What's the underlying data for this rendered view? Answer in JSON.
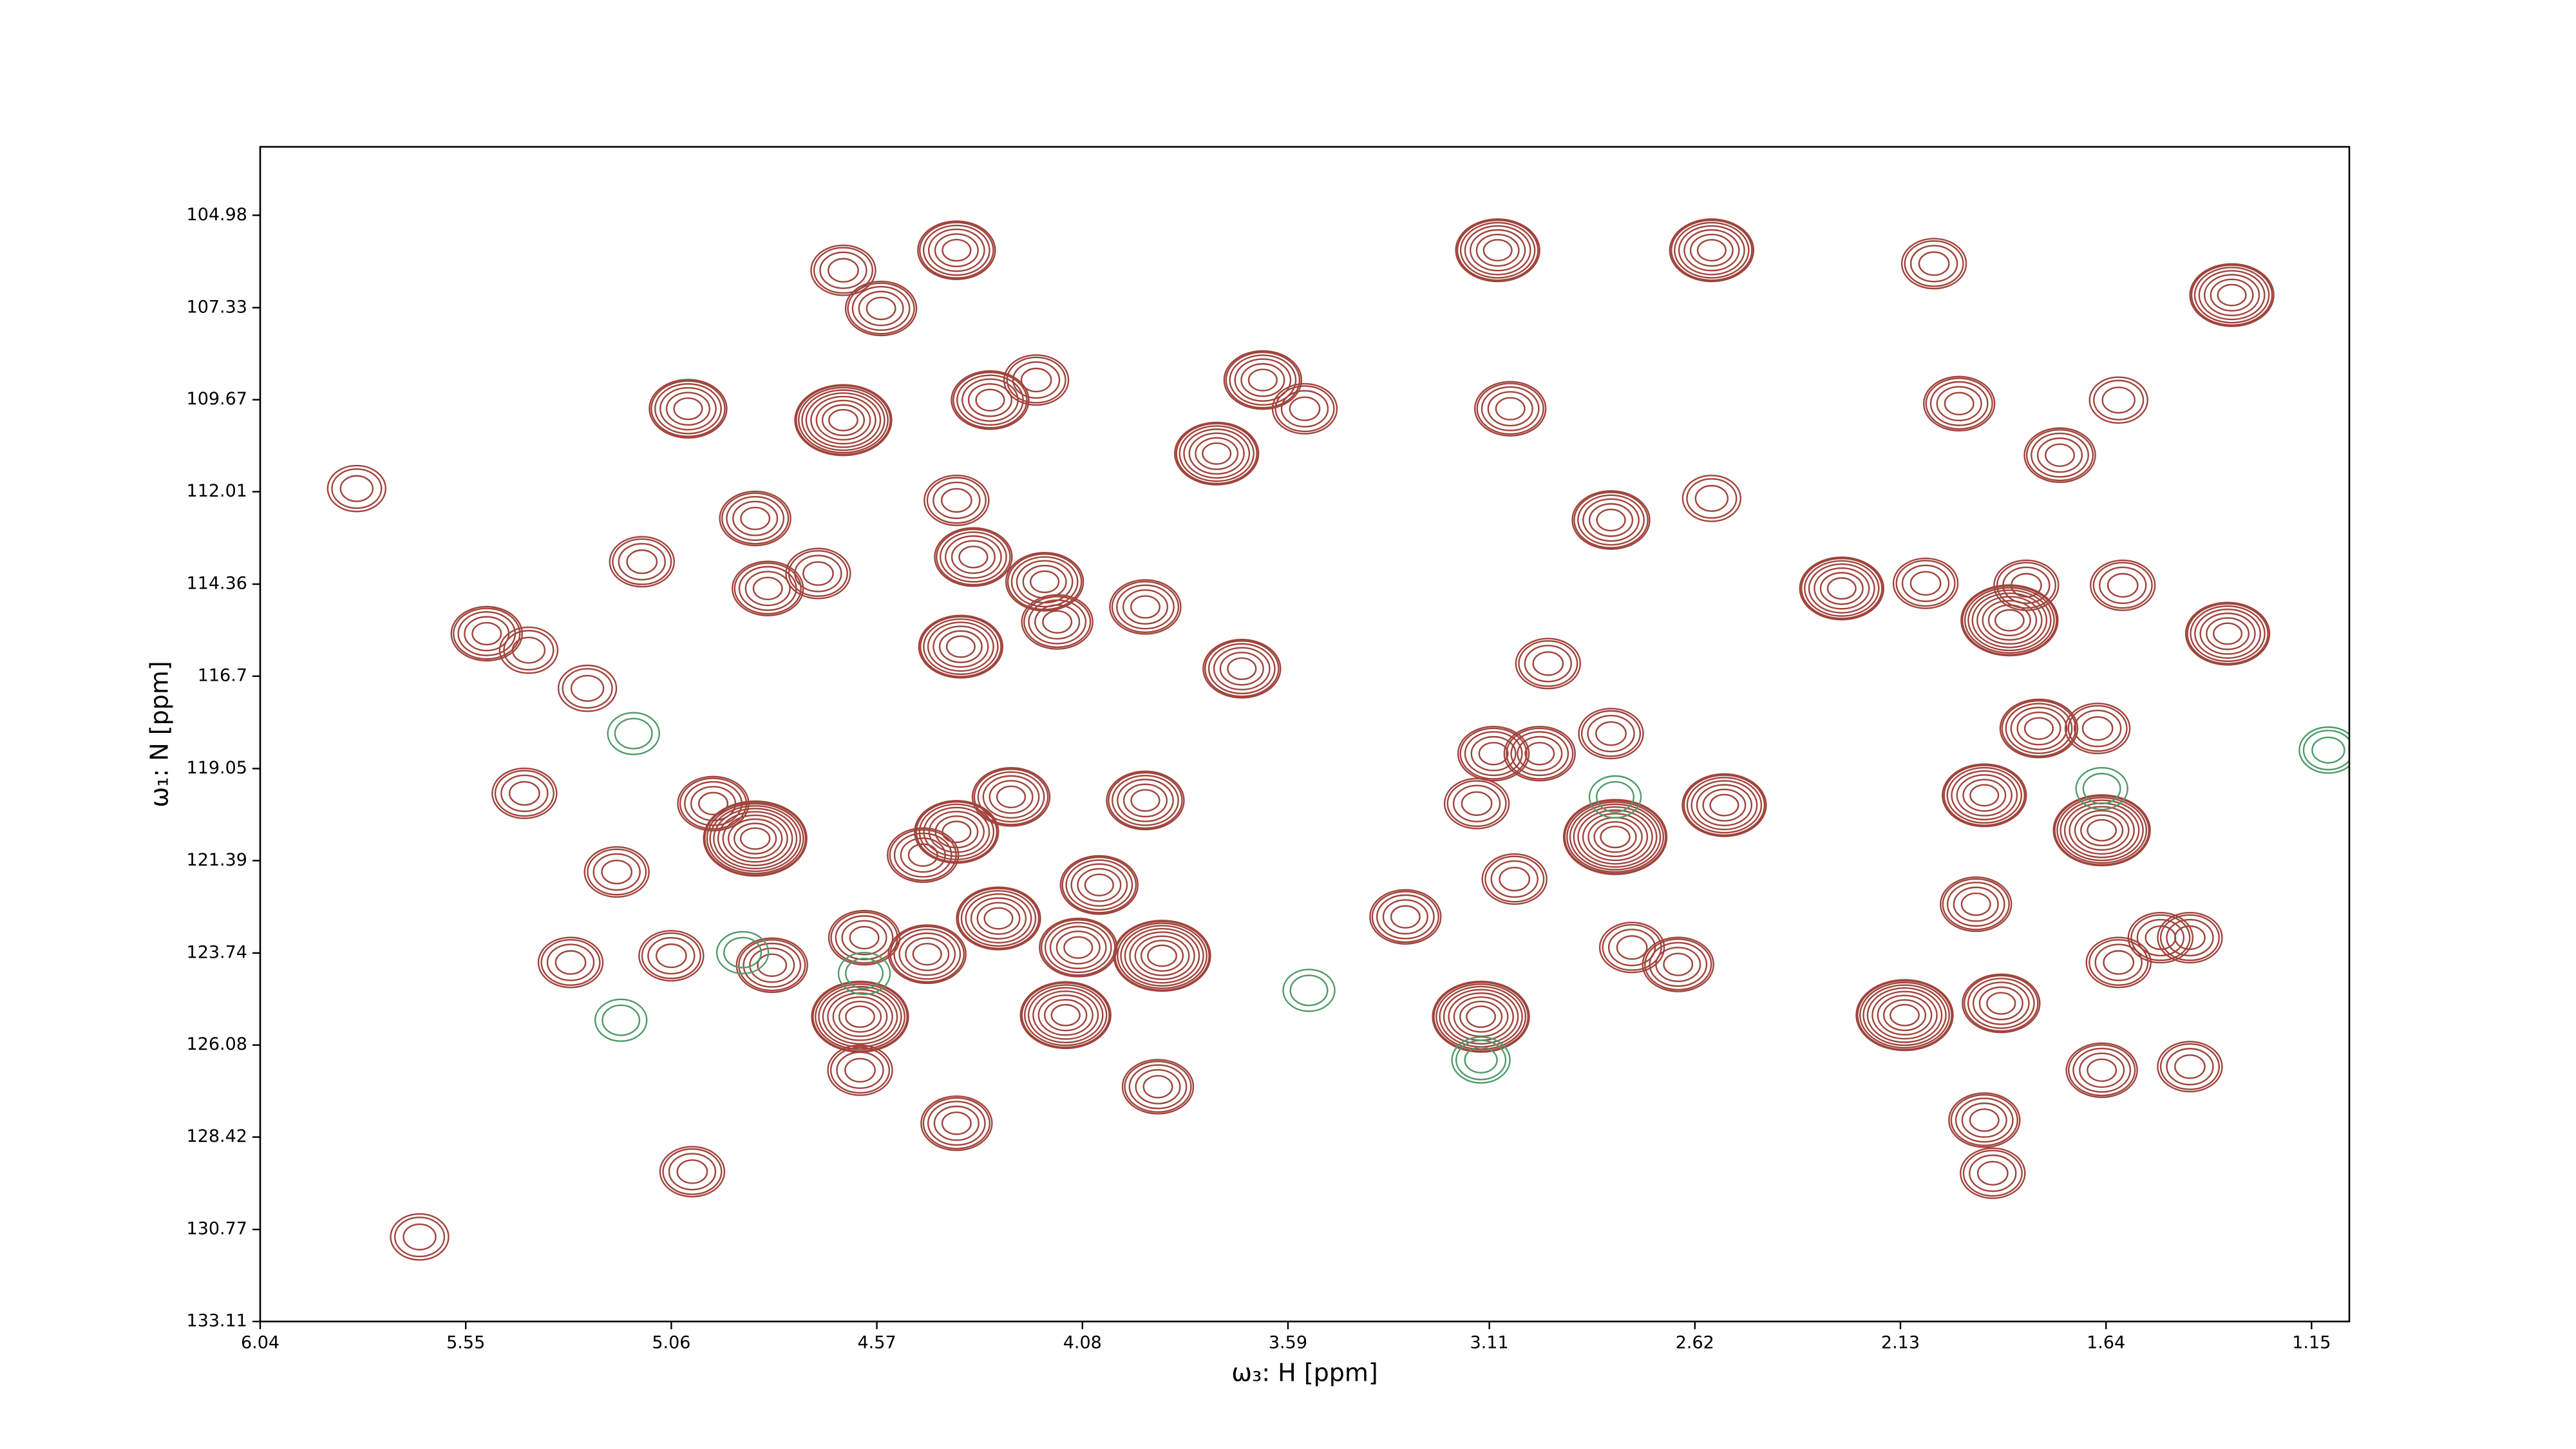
{
  "chart_data": {
    "type": "contour",
    "x_label": "ω₃: H [ppm]",
    "y_label": "ω₁: N [ppm]",
    "xlim": [
      6.04,
      1.06
    ],
    "ylim": [
      133.11,
      103.24
    ],
    "xticks": [
      6.04,
      5.55,
      5.06,
      4.57,
      4.08,
      3.59,
      3.11,
      2.62,
      2.13,
      1.64,
      1.15
    ],
    "yticks": [
      104.98,
      107.33,
      109.67,
      112.01,
      114.36,
      116.7,
      119.05,
      121.39,
      123.74,
      126.08,
      128.42,
      130.77,
      133.11
    ],
    "color": "#a0443c",
    "negative_color": "#4f9a6a",
    "peaks": {
      "x": [
        4.38,
        3.09,
        2.58,
        2.05,
        1.34,
        4.65,
        4.56,
        4.65,
        5.02,
        4.3,
        4.19,
        3.65,
        3.55,
        3.76,
        3.06,
        2.82,
        2.58,
        1.99,
        1.75,
        1.61,
        5.81,
        4.86,
        5.13,
        4.83,
        4.71,
        4.34,
        4.38,
        4.17,
        4.14,
        4.37,
        2.27,
        2.07,
        1.83,
        1.87,
        1.6,
        1.35,
        5.5,
        5.4,
        5.26,
        3.7,
        3.93,
        2.97,
        2.82,
        3.1,
        2.99,
        1.8,
        1.66,
        1.93,
        1.65,
        2.81,
        2.55,
        3.14,
        4.86,
        4.96,
        5.41,
        5.19,
        4.38,
        4.25,
        4.46,
        3.93,
        4.28,
        4.04,
        4.09,
        3.89,
        4.45,
        4.6,
        3.31,
        3.05,
        2.77,
        2.66,
        5.06,
        5.3,
        4.82,
        4.61,
        4.61,
        4.12,
        3.13,
        2.12,
        1.89,
        1.65,
        1.44,
        1.93,
        1.91,
        4.38,
        3.9,
        5.01,
        1.44,
        1.51,
        1.95,
        1.61,
        5.66
      ],
      "y": [
        105.87,
        105.87,
        105.87,
        106.21,
        107.01,
        106.38,
        107.35,
        110.19,
        109.9,
        109.68,
        109.17,
        109.17,
        109.9,
        111.04,
        109.9,
        112.73,
        112.18,
        109.77,
        111.08,
        109.68,
        111.93,
        112.69,
        113.79,
        114.47,
        114.09,
        113.67,
        112.23,
        114.3,
        115.32,
        115.95,
        114.47,
        114.34,
        114.39,
        115.28,
        114.39,
        115.62,
        115.62,
        116.04,
        117.01,
        116.51,
        114.94,
        116.38,
        118.16,
        118.67,
        118.67,
        118.03,
        118.03,
        119.73,
        120.62,
        120.79,
        119.98,
        119.94,
        120.83,
        119.94,
        119.68,
        121.68,
        120.66,
        119.77,
        121.25,
        119.86,
        122.86,
        122.01,
        123.6,
        123.81,
        123.77,
        123.35,
        122.82,
        121.86,
        123.6,
        124.03,
        123.81,
        123.98,
        124.05,
        125.36,
        126.72,
        125.32,
        125.36,
        125.32,
        125.02,
        126.72,
        126.63,
        127.99,
        129.34,
        128.07,
        127.14,
        129.3,
        123.35,
        123.35,
        122.5,
        123.98,
        130.96
      ],
      "levels": [
        6,
        7,
        7,
        4,
        7,
        4,
        5,
        9,
        6,
        6,
        4,
        6,
        4,
        7,
        5,
        6,
        3,
        5,
        5,
        3,
        3,
        5,
        4,
        5,
        4,
        6,
        4,
        6,
        5,
        7,
        7,
        4,
        4,
        9,
        4,
        7,
        5,
        3,
        3,
        6,
        5,
        4,
        4,
        5,
        5,
        6,
        4,
        7,
        9,
        10,
        7,
        4,
        10,
        5,
        4,
        4,
        7,
        6,
        5,
        6,
        7,
        6,
        6,
        9,
        6,
        5,
        5,
        4,
        4,
        5,
        4,
        4,
        5,
        9,
        4,
        8,
        9,
        9,
        6,
        5,
        4,
        5,
        4,
        5,
        5,
        4,
        4,
        4,
        5,
        4,
        3
      ]
    },
    "negative_peaks": {
      "x": [
        5.15,
        1.11,
        3.13,
        4.6,
        5.18,
        2.81,
        1.65,
        3.54,
        4.89
      ],
      "y": [
        118.16,
        118.58,
        126.46,
        124.26,
        125.45,
        119.77,
        119.56,
        124.69,
        123.73
      ],
      "levels": [
        2,
        3,
        3,
        2,
        2,
        2,
        2,
        2,
        2
      ]
    }
  }
}
